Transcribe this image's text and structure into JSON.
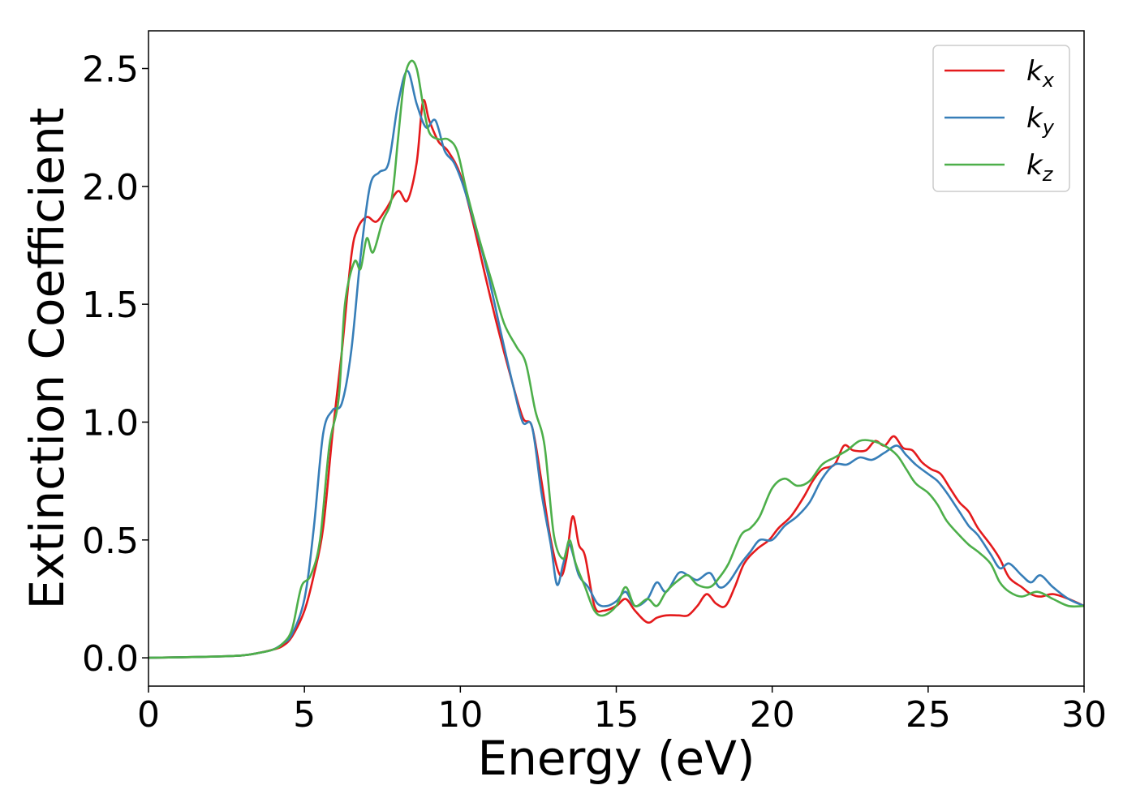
{
  "chart_data": {
    "type": "line",
    "xlabel": "Energy (eV)",
    "ylabel": "Extinction Coefficient",
    "xlim": [
      0,
      30
    ],
    "ylim": [
      -0.12,
      2.66
    ],
    "xticks": [
      0,
      5,
      10,
      15,
      20,
      25,
      30
    ],
    "yticks": [
      0.0,
      0.5,
      1.0,
      1.5,
      2.0,
      2.5
    ],
    "xtick_labels": [
      "0",
      "5",
      "10",
      "15",
      "20",
      "25",
      "30"
    ],
    "ytick_labels": [
      "0.0",
      "0.5",
      "1.0",
      "1.5",
      "2.0",
      "2.5"
    ],
    "grid": false,
    "legend_position": "top-right",
    "series": [
      {
        "name": "k",
        "subscript": "x",
        "color": "#e41a1c",
        "x": [
          0,
          2,
          3,
          3.5,
          4,
          4.3,
          4.6,
          5.0,
          5.3,
          5.6,
          5.9,
          6.2,
          6.5,
          6.7,
          7.0,
          7.3,
          7.6,
          8.0,
          8.3,
          8.6,
          8.8,
          9.0,
          9.3,
          9.6,
          10.0,
          10.4,
          10.8,
          11.2,
          11.6,
          12.0,
          12.3,
          12.6,
          12.9,
          13.2,
          13.4,
          13.6,
          13.8,
          14.0,
          14.3,
          14.6,
          15.0,
          15.3,
          15.6,
          16.0,
          16.3,
          16.6,
          17.0,
          17.3,
          17.6,
          17.9,
          18.2,
          18.5,
          18.8,
          19.1,
          19.5,
          19.9,
          20.2,
          20.6,
          21.0,
          21.3,
          21.6,
          22.0,
          22.3,
          22.6,
          23.0,
          23.3,
          23.6,
          23.9,
          24.2,
          24.5,
          24.8,
          25.1,
          25.4,
          25.7,
          26.0,
          26.3,
          26.6,
          27.0,
          27.3,
          27.6,
          28.0,
          28.3,
          28.6,
          29.0,
          29.5,
          30
        ],
        "values": [
          0.0,
          0.005,
          0.01,
          0.02,
          0.035,
          0.05,
          0.09,
          0.2,
          0.35,
          0.55,
          0.95,
          1.3,
          1.7,
          1.82,
          1.87,
          1.85,
          1.9,
          1.98,
          1.94,
          2.1,
          2.36,
          2.28,
          2.19,
          2.15,
          2.05,
          1.85,
          1.62,
          1.4,
          1.2,
          1.02,
          0.98,
          0.75,
          0.5,
          0.35,
          0.42,
          0.6,
          0.48,
          0.43,
          0.22,
          0.2,
          0.22,
          0.25,
          0.2,
          0.15,
          0.17,
          0.18,
          0.18,
          0.18,
          0.22,
          0.27,
          0.23,
          0.22,
          0.3,
          0.4,
          0.46,
          0.5,
          0.55,
          0.6,
          0.68,
          0.75,
          0.8,
          0.82,
          0.9,
          0.88,
          0.88,
          0.92,
          0.9,
          0.94,
          0.89,
          0.88,
          0.83,
          0.8,
          0.78,
          0.72,
          0.66,
          0.62,
          0.55,
          0.48,
          0.42,
          0.34,
          0.3,
          0.27,
          0.26,
          0.27,
          0.25,
          0.22
        ]
      },
      {
        "name": "k",
        "subscript": "y",
        "color": "#377eb8",
        "x": [
          0,
          2,
          3,
          3.5,
          4,
          4.3,
          4.6,
          5.0,
          5.3,
          5.6,
          5.9,
          6.2,
          6.5,
          6.8,
          7.1,
          7.4,
          7.7,
          8.0,
          8.3,
          8.6,
          8.9,
          9.2,
          9.5,
          9.8,
          10.1,
          10.5,
          10.9,
          11.3,
          11.7,
          12.0,
          12.3,
          12.6,
          12.9,
          13.1,
          13.3,
          13.5,
          13.8,
          14.1,
          14.4,
          14.7,
          15.0,
          15.3,
          15.6,
          16.0,
          16.3,
          16.6,
          17.0,
          17.3,
          17.6,
          18.0,
          18.3,
          18.6,
          19.0,
          19.3,
          19.6,
          20.0,
          20.4,
          20.8,
          21.2,
          21.6,
          22.0,
          22.4,
          22.8,
          23.2,
          23.6,
          24.0,
          24.3,
          24.6,
          25.0,
          25.3,
          25.6,
          26.0,
          26.3,
          26.6,
          27.0,
          27.3,
          27.6,
          28.0,
          28.3,
          28.6,
          29.0,
          29.5,
          30
        ],
        "values": [
          0.0,
          0.005,
          0.01,
          0.02,
          0.035,
          0.06,
          0.1,
          0.25,
          0.55,
          0.95,
          1.05,
          1.08,
          1.3,
          1.7,
          2.0,
          2.06,
          2.1,
          2.35,
          2.49,
          2.35,
          2.25,
          2.28,
          2.15,
          2.1,
          2.0,
          1.82,
          1.62,
          1.38,
          1.15,
          1.0,
          0.98,
          0.7,
          0.48,
          0.31,
          0.4,
          0.48,
          0.35,
          0.3,
          0.23,
          0.22,
          0.24,
          0.28,
          0.22,
          0.25,
          0.32,
          0.28,
          0.36,
          0.35,
          0.33,
          0.36,
          0.3,
          0.32,
          0.4,
          0.45,
          0.5,
          0.5,
          0.56,
          0.6,
          0.66,
          0.76,
          0.82,
          0.82,
          0.85,
          0.84,
          0.87,
          0.9,
          0.86,
          0.82,
          0.78,
          0.75,
          0.7,
          0.62,
          0.56,
          0.52,
          0.44,
          0.38,
          0.4,
          0.35,
          0.32,
          0.35,
          0.3,
          0.25,
          0.22
        ]
      },
      {
        "name": "k",
        "subscript": "z",
        "color": "#4daf4a",
        "x": [
          0,
          2,
          3,
          3.5,
          4,
          4.3,
          4.6,
          4.9,
          5.2,
          5.5,
          5.8,
          6.1,
          6.3,
          6.6,
          6.8,
          7.0,
          7.2,
          7.5,
          7.8,
          8.0,
          8.2,
          8.4,
          8.6,
          8.8,
          9.0,
          9.3,
          9.6,
          9.9,
          10.2,
          10.6,
          11.0,
          11.4,
          11.8,
          12.1,
          12.4,
          12.7,
          13.0,
          13.3,
          13.5,
          13.7,
          14.0,
          14.3,
          14.6,
          15.0,
          15.3,
          15.6,
          16.0,
          16.3,
          16.6,
          17.0,
          17.3,
          17.6,
          18.0,
          18.3,
          18.6,
          19.0,
          19.3,
          19.6,
          20.0,
          20.4,
          20.8,
          21.2,
          21.6,
          22.0,
          22.4,
          22.8,
          23.2,
          23.6,
          24.0,
          24.3,
          24.6,
          25.0,
          25.3,
          25.6,
          26.0,
          26.3,
          26.6,
          27.0,
          27.3,
          27.6,
          28.0,
          28.5,
          29.0,
          29.5,
          30
        ],
        "values": [
          0.0,
          0.005,
          0.01,
          0.02,
          0.035,
          0.06,
          0.12,
          0.3,
          0.35,
          0.5,
          0.9,
          1.1,
          1.5,
          1.68,
          1.65,
          1.78,
          1.72,
          1.85,
          1.95,
          2.2,
          2.45,
          2.53,
          2.5,
          2.35,
          2.23,
          2.2,
          2.2,
          2.15,
          1.98,
          1.78,
          1.6,
          1.42,
          1.32,
          1.25,
          1.05,
          0.9,
          0.52,
          0.42,
          0.5,
          0.4,
          0.3,
          0.2,
          0.18,
          0.22,
          0.3,
          0.22,
          0.25,
          0.22,
          0.28,
          0.33,
          0.35,
          0.31,
          0.3,
          0.34,
          0.4,
          0.52,
          0.55,
          0.6,
          0.72,
          0.76,
          0.73,
          0.75,
          0.82,
          0.85,
          0.88,
          0.92,
          0.92,
          0.9,
          0.86,
          0.8,
          0.74,
          0.7,
          0.65,
          0.58,
          0.52,
          0.48,
          0.45,
          0.4,
          0.32,
          0.28,
          0.26,
          0.28,
          0.25,
          0.22,
          0.22
        ]
      }
    ]
  }
}
